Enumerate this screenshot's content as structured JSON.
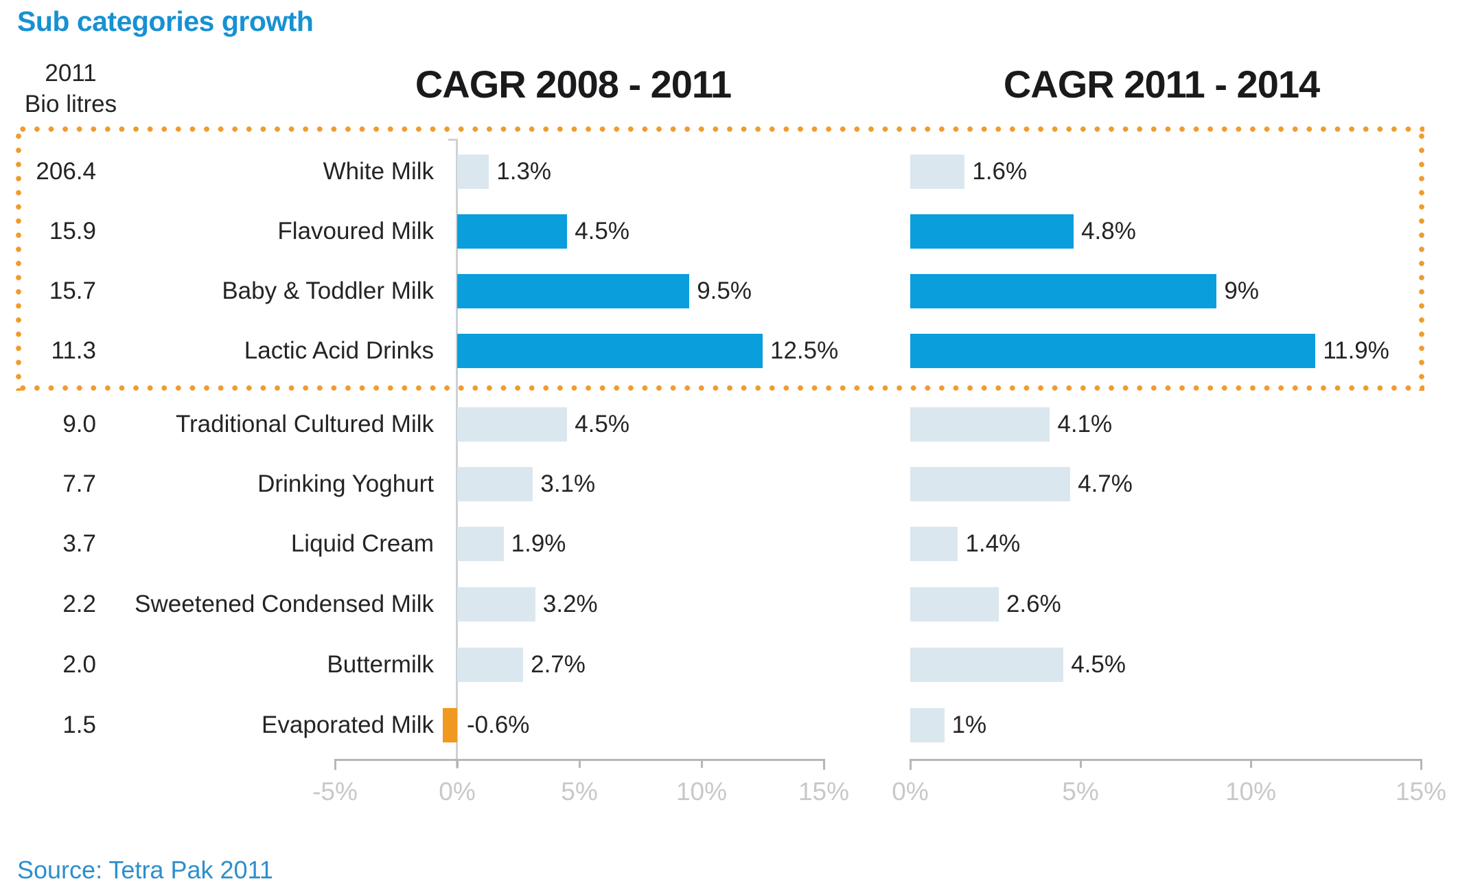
{
  "page": {
    "title": "Sub categories growth",
    "source": "Source: Tetra Pak 2011"
  },
  "bio_header": {
    "line1": "2011",
    "line2": "Bio litres"
  },
  "colors": {
    "bar_strong": "#0a9edc",
    "bar_muted": "#dbe7ef",
    "bar_negative": "#f0981f",
    "dotted_border": "#f09b2e",
    "title_blue": "#1791d3",
    "source_blue": "#2d8fcb",
    "axis_label_gray": "#c8c8c8",
    "axis_line_gray": "#b6b6b6",
    "text_dark": "#262324"
  },
  "chart_data": {
    "type": "bar",
    "orientation": "horizontal",
    "title_left": "CAGR 2008 - 2011",
    "title_right": "CAGR 2011 - 2014",
    "categories": [
      "White Milk",
      "Flavoured Milk",
      "Baby & Toddler Milk",
      "Lactic Acid Drinks",
      "Traditional Cultured Milk",
      "Drinking Yoghurt",
      "Liquid Cream",
      "Sweetened Condensed Milk",
      "Buttermilk",
      "Evaporated Milk"
    ],
    "bio_litres_2011": [
      "206.4",
      "15.9",
      "15.7",
      "11.3",
      "9.0",
      "7.7",
      "3.7",
      "2.2",
      "2.0",
      "1.5"
    ],
    "emphasis": [
      false,
      true,
      true,
      true,
      false,
      false,
      false,
      false,
      false,
      false
    ],
    "highlight_box_rows": [
      0,
      1,
      2,
      3
    ],
    "series": [
      {
        "name": "CAGR 2008 - 2011",
        "values": [
          1.3,
          4.5,
          9.5,
          12.5,
          4.5,
          3.1,
          1.9,
          3.2,
          2.7,
          -0.6
        ],
        "labels": [
          "1.3%",
          "4.5%",
          "9.5%",
          "12.5%",
          "4.5%",
          "3.1%",
          "1.9%",
          "3.2%",
          "2.7%",
          "-0.6%"
        ]
      },
      {
        "name": "CAGR 2011 - 2014",
        "values": [
          1.6,
          4.8,
          9,
          11.9,
          4.1,
          4.7,
          1.4,
          2.6,
          4.5,
          1
        ],
        "labels": [
          "1.6%",
          "4.8%",
          "9%",
          "11.9%",
          "4.1%",
          "4.7%",
          "1.4%",
          "2.6%",
          "4.5%",
          "1%"
        ]
      }
    ],
    "axes": [
      {
        "ticks": [
          -5,
          0,
          5,
          10,
          15
        ],
        "labels": [
          "-5%",
          "0%",
          "5%",
          "10%",
          "15%"
        ],
        "range": [
          -5,
          15
        ]
      },
      {
        "ticks": [
          0,
          5,
          10,
          15
        ],
        "labels": [
          "0%",
          "5%",
          "10%",
          "15%"
        ],
        "range": [
          0,
          15
        ]
      }
    ],
    "grid": "zero-line on left chart only",
    "legend": "none"
  }
}
